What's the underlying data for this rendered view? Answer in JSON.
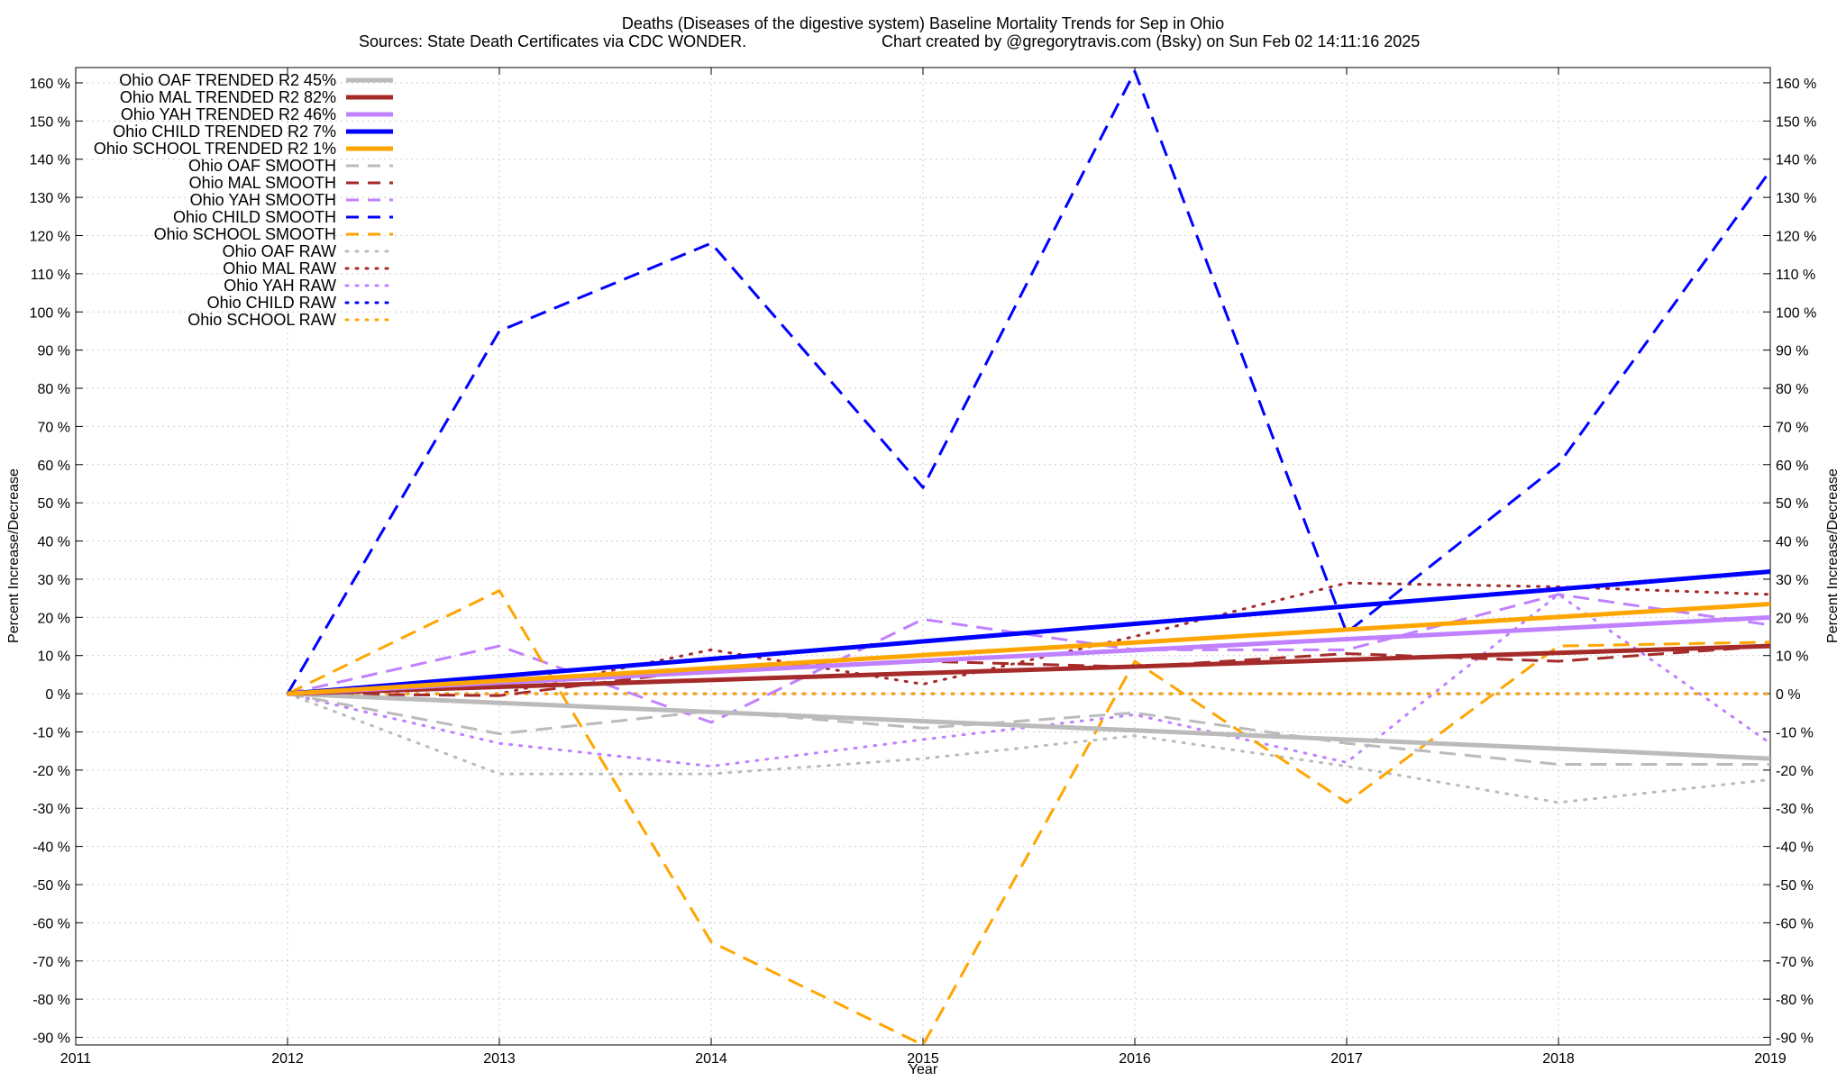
{
  "chart_data": {
    "type": "line",
    "title": "Deaths (Diseases of the digestive system)  Baseline Mortality Trends for Sep in Ohio",
    "subtitle_left": "Sources: State Death Certificates via CDC WONDER.",
    "subtitle_right": "Chart created by @gregorytravis.com (Bsky) on Sun Feb 02 14:11:16 2025",
    "xlabel": "Year",
    "ylabel": "Percent Increase/Decrease",
    "ylabel_right": "Percent Increase/Decrease",
    "xlim": [
      2011,
      2019
    ],
    "ylim": [
      -92,
      164
    ],
    "x_ticks": [
      "2011",
      "2012",
      "2013",
      "2014",
      "2015",
      "2016",
      "2017",
      "2018",
      "2019"
    ],
    "y_ticks": [
      "160 %",
      "150 %",
      "140 %",
      "130 %",
      "120 %",
      "110 %",
      "100 %",
      "90 %",
      "80 %",
      "70 %",
      "60 %",
      "50 %",
      "40 %",
      "30 %",
      "20 %",
      "10 %",
      "0 %",
      "-10 %",
      "-20 %",
      "-30 %",
      "-40 %",
      "-50 %",
      "-60 %",
      "-70 %",
      "-80 %",
      "-90 %"
    ],
    "grid": true,
    "legend_position": "top-left",
    "x": [
      2012,
      2013,
      2014,
      2015,
      2016,
      2017,
      2018,
      2019
    ],
    "series": [
      {
        "name": "Ohio OAF TRENDED R2  45%",
        "style": "solid",
        "color": "#bbbbbb",
        "values": [
          0,
          -2.4,
          -4.8,
          -7.2,
          -9.6,
          -12,
          -14.4,
          -17
        ]
      },
      {
        "name": "Ohio MAL TRENDED R2  82%",
        "style": "solid",
        "color": "#a52a2a",
        "values": [
          0,
          1.8,
          3.6,
          5.4,
          7.1,
          8.9,
          10.7,
          12.5
        ]
      },
      {
        "name": "Ohio YAH TRENDED R2  46%",
        "style": "solid",
        "color": "#c080ff",
        "values": [
          0,
          2.9,
          5.7,
          8.6,
          11.4,
          14.3,
          17.1,
          20
        ]
      },
      {
        "name": "Ohio CHILD TRENDED R2  7%",
        "style": "solid",
        "color": "#0000ff",
        "values": [
          0,
          4.6,
          9.1,
          13.7,
          18.3,
          22.9,
          27.4,
          32
        ]
      },
      {
        "name": "Ohio SCHOOL TRENDED R2  1%",
        "style": "solid",
        "color": "#ffa500",
        "values": [
          0,
          3.4,
          6.7,
          10.1,
          13.4,
          16.8,
          20.1,
          23.5
        ]
      },
      {
        "name": "Ohio OAF SMOOTH",
        "style": "dashed",
        "color": "#bbbbbb",
        "values": [
          0,
          -10.5,
          -4.5,
          -9,
          -5,
          -13,
          -18.5,
          -18.5
        ]
      },
      {
        "name": "Ohio MAL SMOOTH",
        "style": "dashed",
        "color": "#a52a2a",
        "values": [
          0,
          -0.5,
          6.5,
          8.5,
          7,
          10.5,
          8.5,
          12.5
        ]
      },
      {
        "name": "Ohio YAH SMOOTH",
        "style": "dashed",
        "color": "#c080ff",
        "values": [
          0,
          12.5,
          -7.5,
          19.5,
          11.5,
          11.5,
          26,
          18
        ]
      },
      {
        "name": "Ohio CHILD SMOOTH",
        "style": "dashed",
        "color": "#0000ff",
        "values": [
          0,
          95,
          118,
          54,
          163,
          16,
          60,
          137
        ]
      },
      {
        "name": "Ohio SCHOOL SMOOTH",
        "style": "dashed",
        "color": "#ffa500",
        "values": [
          0,
          27,
          -65,
          -92,
          8.5,
          -28.5,
          12.5,
          13.5
        ]
      },
      {
        "name": "Ohio OAF RAW",
        "style": "dotted",
        "color": "#bbbbbb",
        "values": [
          0,
          -21,
          -21,
          -17,
          -11,
          -19,
          -28.5,
          -22.5
        ]
      },
      {
        "name": "Ohio MAL RAW",
        "style": "dotted",
        "color": "#a52a2a",
        "values": [
          0,
          0,
          11.5,
          2.5,
          15,
          29,
          28,
          26
        ]
      },
      {
        "name": "Ohio YAH RAW",
        "style": "dotted",
        "color": "#c080ff",
        "values": [
          0,
          -13,
          -19,
          -12,
          -5.5,
          -18,
          26,
          -13
        ]
      },
      {
        "name": "Ohio CHILD RAW",
        "style": "dotted",
        "color": "#0000ff",
        "values": [
          0,
          0,
          0,
          0,
          0,
          0,
          0,
          0
        ]
      },
      {
        "name": "Ohio SCHOOL RAW",
        "style": "dotted",
        "color": "#ffa500",
        "values": [
          0,
          0,
          0,
          0,
          0,
          0,
          0,
          0
        ]
      }
    ]
  }
}
